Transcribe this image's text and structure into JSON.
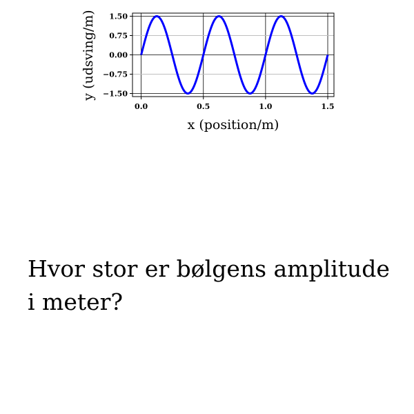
{
  "chart_data": {
    "type": "line",
    "xlabel": "x (position/m)",
    "ylabel": "y (udsving/m)",
    "xlim": [
      -0.07,
      1.55
    ],
    "ylim": [
      -1.62,
      1.62
    ],
    "x_ticks": [
      0.0,
      0.5,
      1.0,
      1.5
    ],
    "x_tick_labels": [
      "0.0",
      "0.5",
      "1.0",
      "1.5"
    ],
    "y_ticks": [
      1.5,
      0.75,
      0.0,
      -0.75,
      -1.5
    ],
    "y_tick_labels": [
      "1.50",
      "0.75",
      "0.00",
      "−0.75",
      "−1.50"
    ],
    "grid": true,
    "series": [
      {
        "color": "#0000ff",
        "x": [
          0.0,
          0.125,
          0.25,
          0.375,
          0.5,
          0.625,
          0.75,
          0.875,
          1.0,
          1.125,
          1.25,
          1.375,
          1.5
        ],
        "y": [
          0.0,
          1.5,
          0.0,
          -1.5,
          0.0,
          1.5,
          0.0,
          -1.5,
          0.0,
          1.5,
          0.0,
          -1.5,
          0.0
        ]
      }
    ]
  },
  "question": "Hvor stor er bølgens amplitude i meter?"
}
